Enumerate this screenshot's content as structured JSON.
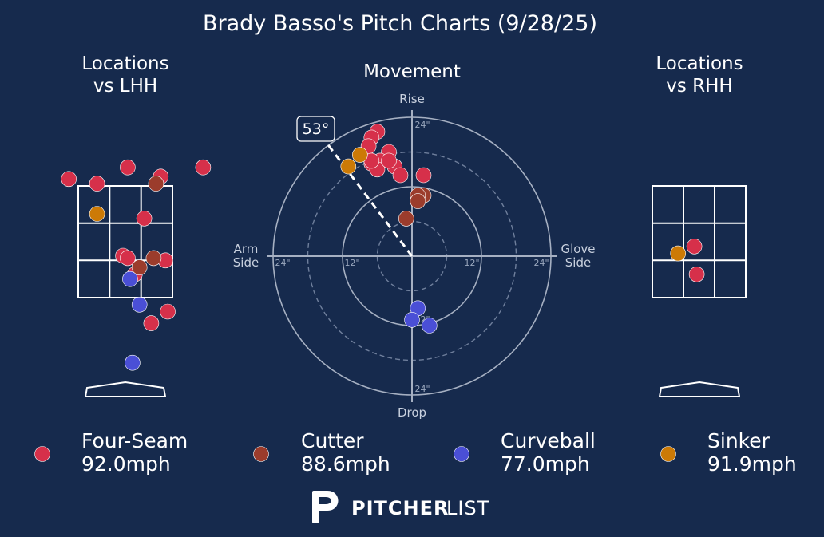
{
  "title": "Brady Basso's Pitch Charts (9/28/25)",
  "colors": {
    "background": "#162a4d",
    "four_seam": "#d6304a",
    "cutter": "#9b3c2c",
    "curveball": "#4a4fd6",
    "sinker": "#cc7a06"
  },
  "brand": {
    "bold": "PITCHER",
    "light": "LIST",
    "icon": "pitcherlist-logo-icon"
  },
  "chart_data": [
    {
      "type": "scatter",
      "title_line1": "Locations",
      "title_line2": "vs LHH",
      "zone": {
        "x_range": [
          -10,
          10
        ],
        "y_range": [
          18,
          42
        ],
        "grid": "3x3"
      },
      "series": [
        {
          "name": "Four-Seam",
          "points": [
            [
              -12,
              43.5
            ],
            [
              -6,
              42.5
            ],
            [
              0.5,
              46
            ],
            [
              7.5,
              44
            ],
            [
              16.5,
              46
            ],
            [
              4,
              35
            ],
            [
              -0.5,
              27
            ],
            [
              0.5,
              26.5
            ],
            [
              8.5,
              26
            ],
            [
              2,
              23
            ],
            [
              9,
              15
            ],
            [
              5.5,
              12.5
            ]
          ]
        },
        {
          "name": "Cutter",
          "points": [
            [
              6.5,
              42.5
            ],
            [
              6,
              26.5
            ],
            [
              3,
              24.5
            ]
          ]
        },
        {
          "name": "Curveball",
          "points": [
            [
              1,
              22
            ],
            [
              3,
              16.5
            ],
            [
              1.5,
              4
            ]
          ]
        },
        {
          "name": "Sinker",
          "points": [
            [
              -6,
              36
            ]
          ]
        }
      ]
    },
    {
      "type": "scatter",
      "title": "Movement",
      "labels": {
        "top": "Rise",
        "bottom": "Drop",
        "left_line1": "Arm",
        "left_line2": "Side",
        "right_line1": "Glove",
        "right_line2": "Side"
      },
      "ring_labels": {
        "left_outer": "24\"",
        "left_inner": "12\"",
        "right_inner": "12\"",
        "right_outer": "24\"",
        "top_outer": "24\"",
        "bottom_outer": "24\"",
        "bottom_inner": "12\""
      },
      "rings_inches": [
        6,
        12,
        18,
        24
      ],
      "arm_angle_label": "53°",
      "arm_angle_deg": 53,
      "units": "inches",
      "series": [
        {
          "name": "Four-Seam",
          "points": [
            [
              -6,
              21.5
            ],
            [
              -7,
              20.5
            ],
            [
              -7.5,
              19
            ],
            [
              -4,
              18
            ],
            [
              -5.5,
              16.5
            ],
            [
              -7,
              16
            ],
            [
              -3,
              15.5
            ],
            [
              -6,
              15
            ],
            [
              -7,
              16.5
            ],
            [
              -4,
              16.5
            ],
            [
              -2,
              14
            ],
            [
              2,
              14
            ]
          ]
        },
        {
          "name": "Cutter",
          "points": [
            [
              2,
              10.5
            ],
            [
              1,
              10.5
            ],
            [
              1,
              9.5
            ],
            [
              -1,
              6.5
            ]
          ]
        },
        {
          "name": "Curveball",
          "points": [
            [
              1,
              -9
            ],
            [
              0,
              -11
            ],
            [
              3,
              -12
            ]
          ]
        },
        {
          "name": "Sinker",
          "points": [
            [
              -9,
              17.5
            ],
            [
              -11,
              15.5
            ]
          ]
        }
      ]
    },
    {
      "type": "scatter",
      "title_line1": "Locations",
      "title_line2": "vs RHH",
      "zone": {
        "x_range": [
          -10,
          10
        ],
        "y_range": [
          18,
          42
        ],
        "grid": "3x3"
      },
      "series": [
        {
          "name": "Four-Seam",
          "points": [
            [
              -1,
              29
            ],
            [
              -0.5,
              23
            ]
          ]
        },
        {
          "name": "Sinker",
          "points": [
            [
              -4.5,
              27.5
            ]
          ]
        }
      ]
    }
  ],
  "legend": [
    {
      "name": "Four-Seam",
      "speed": "92.0mph",
      "color_key": "four_seam"
    },
    {
      "name": "Cutter",
      "speed": "88.6mph",
      "color_key": "cutter"
    },
    {
      "name": "Curveball",
      "speed": "77.0mph",
      "color_key": "curveball"
    },
    {
      "name": "Sinker",
      "speed": "91.9mph",
      "color_key": "sinker"
    }
  ]
}
